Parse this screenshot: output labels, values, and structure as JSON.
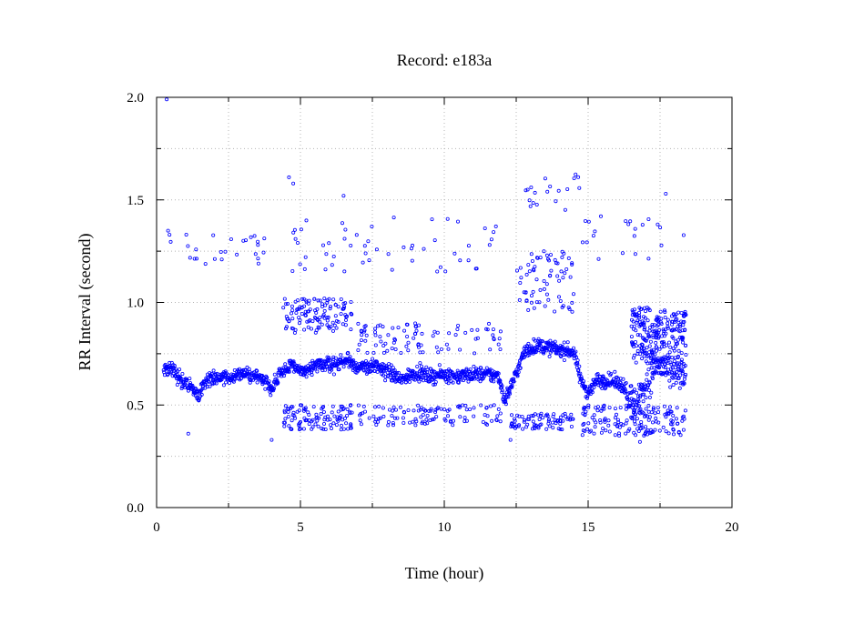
{
  "chart_data": {
    "type": "scatter",
    "title": "Record:  e183a",
    "xlabel": "Time (hour)",
    "ylabel": "RR Interval (second)",
    "xlim": [
      0,
      20
    ],
    "ylim": [
      0,
      2.0
    ],
    "x_ticks": [
      0,
      5,
      10,
      15,
      20
    ],
    "x_tick_labels": [
      "0",
      "5",
      "10",
      "15",
      "20"
    ],
    "x_minor_step": 2.5,
    "y_ticks": [
      0.0,
      0.5,
      1.0,
      1.5,
      2.0
    ],
    "y_tick_labels": [
      "0.0",
      "0.5",
      "1.0",
      "1.5",
      "2.0"
    ],
    "y_minor_step": 0.25,
    "grid": true,
    "legend": "none",
    "marker": "open-circle",
    "series_color": "#0000ff",
    "x_range_of_data": [
      0.25,
      18.4
    ],
    "trend": [
      {
        "x": 0.25,
        "y": 0.67
      },
      {
        "x": 0.5,
        "y": 0.68
      },
      {
        "x": 0.75,
        "y": 0.64
      },
      {
        "x": 1.0,
        "y": 0.6
      },
      {
        "x": 1.3,
        "y": 0.58
      },
      {
        "x": 1.45,
        "y": 0.54
      },
      {
        "x": 1.6,
        "y": 0.6
      },
      {
        "x": 2.0,
        "y": 0.63
      },
      {
        "x": 2.5,
        "y": 0.64
      },
      {
        "x": 3.0,
        "y": 0.65
      },
      {
        "x": 3.5,
        "y": 0.64
      },
      {
        "x": 3.8,
        "y": 0.62
      },
      {
        "x": 4.0,
        "y": 0.58
      },
      {
        "x": 4.3,
        "y": 0.66
      },
      {
        "x": 4.7,
        "y": 0.69
      },
      {
        "x": 5.2,
        "y": 0.66
      },
      {
        "x": 5.7,
        "y": 0.7
      },
      {
        "x": 6.2,
        "y": 0.7
      },
      {
        "x": 6.7,
        "y": 0.72
      },
      {
        "x": 7.0,
        "y": 0.68
      },
      {
        "x": 7.5,
        "y": 0.69
      },
      {
        "x": 8.0,
        "y": 0.67
      },
      {
        "x": 8.5,
        "y": 0.62
      },
      {
        "x": 9.0,
        "y": 0.66
      },
      {
        "x": 9.5,
        "y": 0.64
      },
      {
        "x": 10.0,
        "y": 0.65
      },
      {
        "x": 10.5,
        "y": 0.64
      },
      {
        "x": 11.0,
        "y": 0.65
      },
      {
        "x": 11.5,
        "y": 0.65
      },
      {
        "x": 11.9,
        "y": 0.64
      },
      {
        "x": 12.1,
        "y": 0.52
      },
      {
        "x": 12.4,
        "y": 0.62
      },
      {
        "x": 12.8,
        "y": 0.76
      },
      {
        "x": 13.2,
        "y": 0.79
      },
      {
        "x": 13.6,
        "y": 0.78
      },
      {
        "x": 14.0,
        "y": 0.77
      },
      {
        "x": 14.5,
        "y": 0.76
      },
      {
        "x": 14.75,
        "y": 0.62
      },
      {
        "x": 15.0,
        "y": 0.56
      },
      {
        "x": 15.3,
        "y": 0.62
      },
      {
        "x": 15.7,
        "y": 0.62
      },
      {
        "x": 16.2,
        "y": 0.6
      },
      {
        "x": 16.6,
        "y": 0.5
      },
      {
        "x": 17.0,
        "y": 0.6
      },
      {
        "x": 17.4,
        "y": 0.7
      },
      {
        "x": 17.8,
        "y": 0.66
      },
      {
        "x": 18.4,
        "y": 0.63
      }
    ],
    "outlier_clusters": [
      {
        "x": [
          0.3,
          3.8
        ],
        "y": [
          1.18,
          1.35
        ],
        "count": 26
      },
      {
        "x": [
          4.5,
          11.8
        ],
        "y": [
          1.15,
          1.42
        ],
        "count": 55
      },
      {
        "x": [
          12.8,
          14.7
        ],
        "y": [
          1.45,
          1.63
        ],
        "count": 18
      },
      {
        "x": [
          14.8,
          18.4
        ],
        "y": [
          1.2,
          1.42
        ],
        "count": 22
      },
      {
        "x": [
          4.4,
          6.8
        ],
        "y": [
          0.85,
          1.02
        ],
        "count": 120
      },
      {
        "x": [
          4.4,
          6.8
        ],
        "y": [
          0.38,
          0.5
        ],
        "count": 110
      },
      {
        "x": [
          7.0,
          12.0
        ],
        "y": [
          0.75,
          0.9
        ],
        "count": 90
      },
      {
        "x": [
          7.0,
          12.0
        ],
        "y": [
          0.4,
          0.5
        ],
        "count": 110
      },
      {
        "x": [
          12.5,
          14.5
        ],
        "y": [
          0.95,
          1.25
        ],
        "count": 70
      },
      {
        "x": [
          12.3,
          14.5
        ],
        "y": [
          0.38,
          0.46
        ],
        "count": 80
      },
      {
        "x": [
          14.8,
          18.4
        ],
        "y": [
          0.35,
          0.5
        ],
        "count": 160
      },
      {
        "x": [
          16.5,
          18.4
        ],
        "y": [
          0.7,
          0.98
        ],
        "count": 240
      }
    ],
    "sparse_points": [
      {
        "x": 0.35,
        "y": 1.99
      },
      {
        "x": 0.4,
        "y": 1.35
      },
      {
        "x": 0.45,
        "y": 1.33
      },
      {
        "x": 4.6,
        "y": 1.61
      },
      {
        "x": 4.75,
        "y": 1.58
      },
      {
        "x": 6.5,
        "y": 1.52
      },
      {
        "x": 12.9,
        "y": 1.55
      },
      {
        "x": 17.7,
        "y": 1.53
      },
      {
        "x": 12.3,
        "y": 0.33
      },
      {
        "x": 16.8,
        "y": 0.32
      },
      {
        "x": 4.0,
        "y": 0.33
      },
      {
        "x": 1.1,
        "y": 0.36
      }
    ]
  }
}
